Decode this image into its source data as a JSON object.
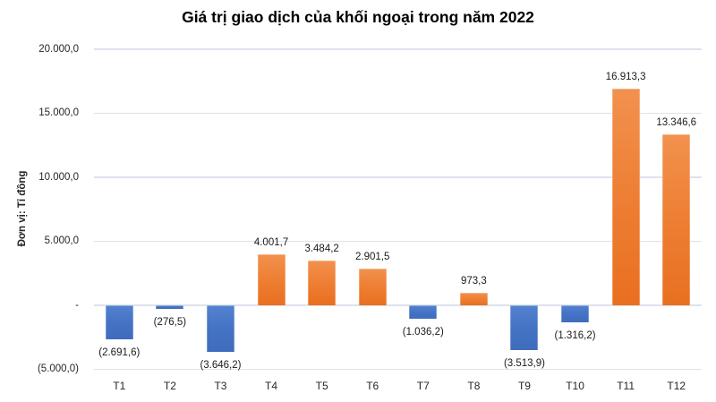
{
  "colors": {
    "positive": "#ED7D31",
    "positive_light": "#F2914E",
    "positive_dark": "#E96F20",
    "negative": "#4472C4",
    "negative_light": "#5282D0",
    "negative_dark": "#3F6CBC",
    "gridline": "#DEE2EC",
    "text": "#262626",
    "title": "#000000"
  },
  "chart_data": {
    "type": "bar",
    "title": "Giá trị giao dịch của khối ngoại trong năm 2022",
    "ylabel": "Đơn vị: Tỉ đồng",
    "xlabel": "",
    "categories": [
      "T1",
      "T2",
      "T3",
      "T4",
      "T5",
      "T6",
      "T7",
      "T8",
      "T9",
      "T10",
      "T11",
      "T12"
    ],
    "values": [
      -2691.6,
      -276.5,
      -3646.2,
      4001.7,
      3484.2,
      2901.5,
      -1036.2,
      973.3,
      -3513.9,
      -1316.2,
      16913.3,
      13346.6
    ],
    "labels": [
      "(2.691,6)",
      "(276,5)",
      "(3.646,2)",
      "4.001,7",
      "3.484,2",
      "2.901,5",
      "(1.036,2)",
      "973,3",
      "(3.513,9)",
      "(1.316,2)",
      "16.913,3",
      "13.346,6"
    ],
    "ylim": [
      -5000,
      20000
    ],
    "ytick_values": [
      20000,
      15000,
      10000,
      5000,
      0,
      -5000
    ],
    "ytick_labels": [
      "20.000,0",
      "15.000,0",
      "10.000,0",
      "5.000,0",
      "-",
      "(5.000,0)"
    ],
    "grid": true,
    "legend": false,
    "label_position": "outside-end"
  }
}
